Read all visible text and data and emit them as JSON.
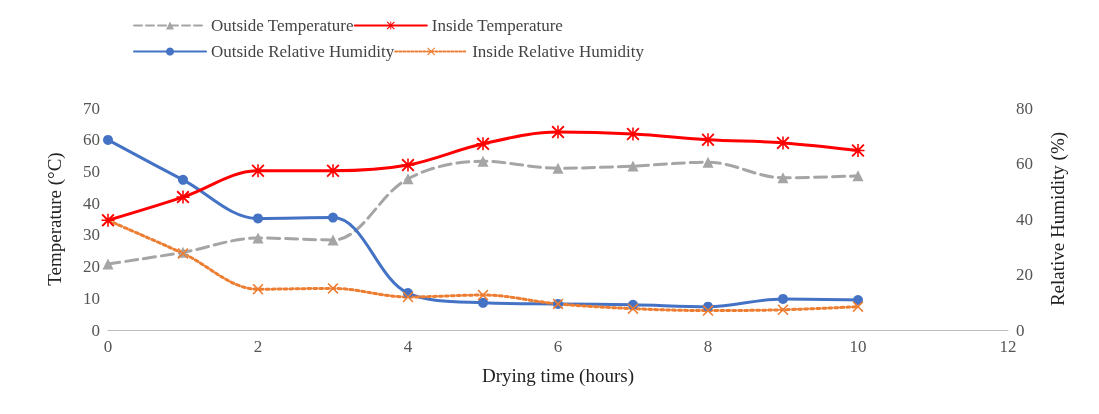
{
  "chart_data": {
    "type": "line",
    "xlabel": "Drying time (hours)",
    "ylabel": "Temperature (°C)",
    "y2label": "Relative Humidity (%)",
    "x": [
      0,
      1,
      2,
      3,
      4,
      5,
      6,
      7,
      8,
      9,
      10
    ],
    "xlim": [
      0,
      12
    ],
    "xticks": [
      0,
      2,
      4,
      6,
      8,
      10,
      12
    ],
    "ylim": [
      0,
      70
    ],
    "yticks": [
      0,
      10,
      20,
      30,
      40,
      50,
      60,
      70
    ],
    "y2lim": [
      0,
      80
    ],
    "y2ticks": [
      0,
      20,
      40,
      60,
      80
    ],
    "legend": "top",
    "grid": false,
    "series": [
      {
        "name": "Outside Temperature",
        "color": "#a5a5a5",
        "marker": "triangle",
        "line_style": "dashed",
        "values": [
          20.8,
          24.5,
          29,
          28.4,
          47.7,
          53.2,
          51,
          51.7,
          52.9,
          48,
          48.6
        ]
      },
      {
        "name": "Inside Temperature",
        "color": "#ff0000",
        "marker": "star",
        "line_style": "solid",
        "values": [
          34.6,
          41.9,
          50.2,
          50.2,
          52,
          58.7,
          62.4,
          61.8,
          60,
          59,
          56.6
        ]
      },
      {
        "name": "Outside Relative Humidity",
        "color": "#4472c4",
        "marker": "circle",
        "line_style": "solid",
        "axis": "y2",
        "values": [
          68.5,
          54.1,
          40.2,
          40.5,
          13.3,
          9.8,
          9.4,
          9.1,
          8.4,
          11.2,
          10.8
        ]
      },
      {
        "name": "Inside Relative Humidity",
        "color": "#ed7d31",
        "marker": "cross",
        "line_style": "dotted",
        "axis": "y2",
        "values": [
          39.5,
          27.6,
          14.7,
          15,
          11.9,
          12.6,
          9.4,
          7.7,
          7,
          7.3,
          8.4
        ]
      }
    ]
  }
}
